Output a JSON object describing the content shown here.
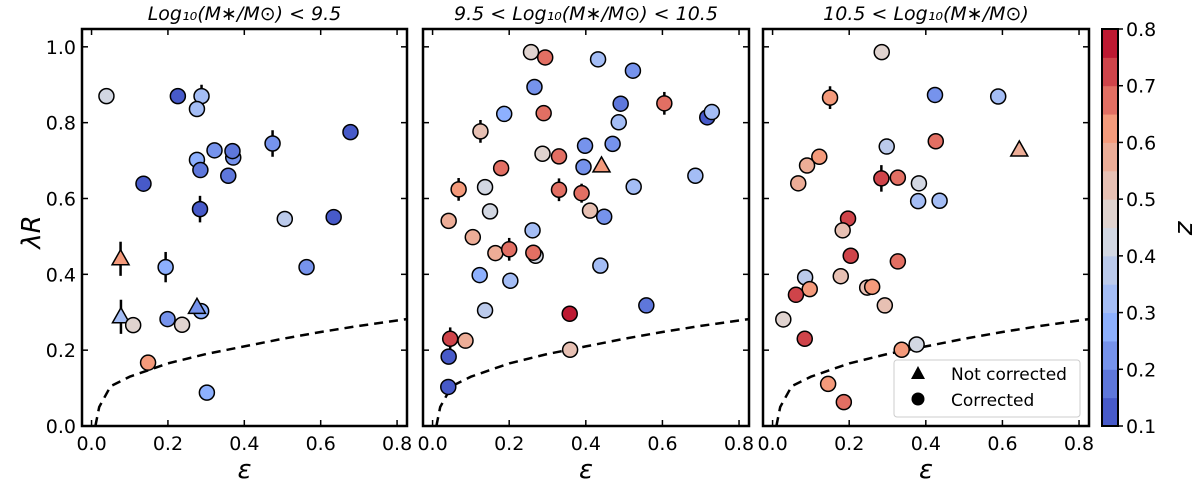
{
  "chart_data": {
    "type": "scatter",
    "ylabel": "λR",
    "xlabel": "ε",
    "xlim": [
      -0.025,
      0.826
    ],
    "ylim": [
      0,
      1.047
    ],
    "xticks": [
      "0.0",
      "0.2",
      "0.4",
      "0.6",
      "0.8"
    ],
    "yticks": [
      "0.0",
      "0.2",
      "0.4",
      "0.6",
      "0.8",
      "1.0"
    ],
    "colorbar": {
      "label": "z",
      "range": [
        0.1,
        0.8
      ],
      "bins": 14,
      "colormap": "coolwarm",
      "ticks": [
        "0.1",
        "0.2",
        "0.3",
        "0.4",
        "0.5",
        "0.6",
        "0.7",
        "0.8"
      ]
    },
    "legend": {
      "placement": "lower-right",
      "entries": [
        {
          "label": "Not corrected",
          "marker": "triangle"
        },
        {
          "label": "Corrected",
          "marker": "circle"
        }
      ]
    },
    "reference_curve": {
      "style": "dashed",
      "color": "#000000",
      "points": [
        [
          0.01,
          0
        ],
        [
          0.02,
          0.05
        ],
        [
          0.05,
          0.105
        ],
        [
          0.1,
          0.13
        ],
        [
          0.2,
          0.165
        ],
        [
          0.3,
          0.19
        ],
        [
          0.4,
          0.21
        ],
        [
          0.5,
          0.23
        ],
        [
          0.6,
          0.248
        ],
        [
          0.7,
          0.264
        ],
        [
          0.826,
          0.282
        ]
      ]
    },
    "panels": [
      {
        "title": "Log₁₀(M∗/M⊙) < 9.5",
        "points": [
          {
            "x": 0.039,
            "y": 0.87,
            "z": 0.42,
            "m": "c"
          },
          {
            "x": 0.226,
            "y": 0.87,
            "z": 0.15,
            "m": "c"
          },
          {
            "x": 0.288,
            "y": 0.87,
            "z": 0.32,
            "m": "c",
            "err": 0.03
          },
          {
            "x": 0.276,
            "y": 0.836,
            "z": 0.32,
            "m": "c"
          },
          {
            "x": 0.678,
            "y": 0.775,
            "z": 0.15,
            "m": "c"
          },
          {
            "x": 0.474,
            "y": 0.745,
            "z": 0.25,
            "m": "c",
            "err": 0.035
          },
          {
            "x": 0.322,
            "y": 0.727,
            "z": 0.25,
            "m": "c"
          },
          {
            "x": 0.371,
            "y": 0.708,
            "z": 0.22,
            "m": "c"
          },
          {
            "x": 0.369,
            "y": 0.725,
            "z": 0.18,
            "m": "c"
          },
          {
            "x": 0.276,
            "y": 0.702,
            "z": 0.3,
            "m": "c"
          },
          {
            "x": 0.285,
            "y": 0.675,
            "z": 0.17,
            "m": "c"
          },
          {
            "x": 0.358,
            "y": 0.66,
            "z": 0.17,
            "m": "c"
          },
          {
            "x": 0.136,
            "y": 0.639,
            "z": 0.15,
            "m": "c"
          },
          {
            "x": 0.284,
            "y": 0.572,
            "z": 0.15,
            "m": "c",
            "err": 0.035
          },
          {
            "x": 0.506,
            "y": 0.546,
            "z": 0.38,
            "m": "c",
            "err": 0.015
          },
          {
            "x": 0.634,
            "y": 0.551,
            "z": 0.15,
            "m": "c"
          },
          {
            "x": 0.563,
            "y": 0.419,
            "z": 0.25,
            "m": "c"
          },
          {
            "x": 0.194,
            "y": 0.419,
            "z": 0.3,
            "m": "c",
            "err": 0.04
          },
          {
            "x": 0.076,
            "y": 0.441,
            "z": 0.62,
            "m": "t",
            "err": 0.045
          },
          {
            "x": 0.077,
            "y": 0.288,
            "z": 0.32,
            "m": "t",
            "err": 0.045
          },
          {
            "x": 0.109,
            "y": 0.266,
            "z": 0.48,
            "m": "c",
            "err": 0.015
          },
          {
            "x": 0.199,
            "y": 0.282,
            "z": 0.25,
            "m": "c"
          },
          {
            "x": 0.237,
            "y": 0.267,
            "z": 0.48,
            "m": "c",
            "err": 0.02
          },
          {
            "x": 0.287,
            "y": 0.303,
            "z": 0.3,
            "m": "c"
          },
          {
            "x": 0.276,
            "y": 0.313,
            "z": 0.25,
            "m": "t"
          },
          {
            "x": 0.148,
            "y": 0.167,
            "z": 0.62,
            "m": "c"
          },
          {
            "x": 0.302,
            "y": 0.088,
            "z": 0.3,
            "m": "c",
            "err": 0.02
          }
        ]
      },
      {
        "title": "9.5 < Log₁₀(M∗/M⊙) < 10.5",
        "points": [
          {
            "x": 0.257,
            "y": 0.986,
            "z": 0.48,
            "m": "c"
          },
          {
            "x": 0.294,
            "y": 0.972,
            "z": 0.68,
            "m": "c"
          },
          {
            "x": 0.432,
            "y": 0.967,
            "z": 0.32,
            "m": "c"
          },
          {
            "x": 0.523,
            "y": 0.937,
            "z": 0.25,
            "m": "c"
          },
          {
            "x": 0.266,
            "y": 0.894,
            "z": 0.24,
            "m": "c"
          },
          {
            "x": 0.491,
            "y": 0.85,
            "z": 0.18,
            "m": "c"
          },
          {
            "x": 0.605,
            "y": 0.851,
            "z": 0.66,
            "m": "c",
            "err": 0.03
          },
          {
            "x": 0.717,
            "y": 0.814,
            "z": 0.15,
            "m": "c"
          },
          {
            "x": 0.729,
            "y": 0.828,
            "z": 0.32,
            "m": "c"
          },
          {
            "x": 0.187,
            "y": 0.823,
            "z": 0.27,
            "m": "c"
          },
          {
            "x": 0.29,
            "y": 0.825,
            "z": 0.66,
            "m": "c"
          },
          {
            "x": 0.486,
            "y": 0.801,
            "z": 0.32,
            "m": "c"
          },
          {
            "x": 0.125,
            "y": 0.777,
            "z": 0.53,
            "m": "c",
            "err": 0.03
          },
          {
            "x": 0.398,
            "y": 0.739,
            "z": 0.25,
            "m": "c"
          },
          {
            "x": 0.47,
            "y": 0.744,
            "z": 0.25,
            "m": "c"
          },
          {
            "x": 0.287,
            "y": 0.718,
            "z": 0.48,
            "m": "c"
          },
          {
            "x": 0.33,
            "y": 0.711,
            "z": 0.66,
            "m": "c"
          },
          {
            "x": 0.394,
            "y": 0.683,
            "z": 0.25,
            "m": "c"
          },
          {
            "x": 0.441,
            "y": 0.686,
            "z": 0.62,
            "m": "t"
          },
          {
            "x": 0.179,
            "y": 0.68,
            "z": 0.66,
            "m": "c",
            "err": 0.02
          },
          {
            "x": 0.686,
            "y": 0.66,
            "z": 0.35,
            "m": "c"
          },
          {
            "x": 0.068,
            "y": 0.624,
            "z": 0.62,
            "m": "c",
            "err": 0.03
          },
          {
            "x": 0.137,
            "y": 0.63,
            "z": 0.43,
            "m": "c"
          },
          {
            "x": 0.33,
            "y": 0.623,
            "z": 0.66,
            "m": "c",
            "err": 0.03
          },
          {
            "x": 0.389,
            "y": 0.614,
            "z": 0.66,
            "m": "c",
            "err": 0.025
          },
          {
            "x": 0.525,
            "y": 0.631,
            "z": 0.33,
            "m": "c"
          },
          {
            "x": 0.15,
            "y": 0.566,
            "z": 0.42,
            "m": "c"
          },
          {
            "x": 0.411,
            "y": 0.568,
            "z": 0.53,
            "m": "c"
          },
          {
            "x": 0.448,
            "y": 0.552,
            "z": 0.25,
            "m": "c"
          },
          {
            "x": 0.042,
            "y": 0.541,
            "z": 0.6,
            "m": "c"
          },
          {
            "x": 0.261,
            "y": 0.516,
            "z": 0.35,
            "m": "c"
          },
          {
            "x": 0.105,
            "y": 0.498,
            "z": 0.55,
            "m": "c"
          },
          {
            "x": 0.164,
            "y": 0.456,
            "z": 0.55,
            "m": "c"
          },
          {
            "x": 0.2,
            "y": 0.466,
            "z": 0.66,
            "m": "c",
            "err": 0.03
          },
          {
            "x": 0.269,
            "y": 0.449,
            "z": 0.4,
            "m": "c"
          },
          {
            "x": 0.263,
            "y": 0.457,
            "z": 0.66,
            "m": "c"
          },
          {
            "x": 0.438,
            "y": 0.423,
            "z": 0.33,
            "m": "c"
          },
          {
            "x": 0.123,
            "y": 0.398,
            "z": 0.27,
            "m": "c"
          },
          {
            "x": 0.203,
            "y": 0.383,
            "z": 0.32,
            "m": "c"
          },
          {
            "x": 0.137,
            "y": 0.305,
            "z": 0.37,
            "m": "c"
          },
          {
            "x": 0.558,
            "y": 0.318,
            "z": 0.18,
            "m": "c"
          },
          {
            "x": 0.358,
            "y": 0.296,
            "z": 0.79,
            "m": "c",
            "err": 0.02
          },
          {
            "x": 0.046,
            "y": 0.23,
            "z": 0.72,
            "m": "c",
            "err": 0.03
          },
          {
            "x": 0.086,
            "y": 0.225,
            "z": 0.6,
            "m": "c"
          },
          {
            "x": 0.359,
            "y": 0.201,
            "z": 0.53,
            "m": "c"
          },
          {
            "x": 0.042,
            "y": 0.183,
            "z": 0.15,
            "m": "c",
            "err": 0.02
          },
          {
            "x": 0.041,
            "y": 0.103,
            "z": 0.15,
            "m": "c"
          }
        ]
      },
      {
        "title": "10.5 < Log₁₀(M∗/M⊙)",
        "points": [
          {
            "x": 0.285,
            "y": 0.986,
            "z": 0.48,
            "m": "c"
          },
          {
            "x": 0.15,
            "y": 0.866,
            "z": 0.62,
            "m": "c",
            "err": 0.03
          },
          {
            "x": 0.424,
            "y": 0.873,
            "z": 0.25,
            "m": "c"
          },
          {
            "x": 0.589,
            "y": 0.869,
            "z": 0.33,
            "m": "c"
          },
          {
            "x": 0.426,
            "y": 0.751,
            "z": 0.66,
            "m": "c"
          },
          {
            "x": 0.644,
            "y": 0.728,
            "z": 0.55,
            "m": "t"
          },
          {
            "x": 0.298,
            "y": 0.737,
            "z": 0.37,
            "m": "c"
          },
          {
            "x": 0.122,
            "y": 0.71,
            "z": 0.63,
            "m": "c"
          },
          {
            "x": 0.09,
            "y": 0.687,
            "z": 0.6,
            "m": "c"
          },
          {
            "x": 0.067,
            "y": 0.64,
            "z": 0.58,
            "m": "c"
          },
          {
            "x": 0.284,
            "y": 0.653,
            "z": 0.71,
            "m": "c",
            "err": 0.035
          },
          {
            "x": 0.327,
            "y": 0.655,
            "z": 0.66,
            "m": "c"
          },
          {
            "x": 0.382,
            "y": 0.64,
            "z": 0.43,
            "m": "c"
          },
          {
            "x": 0.38,
            "y": 0.593,
            "z": 0.33,
            "m": "c"
          },
          {
            "x": 0.436,
            "y": 0.594,
            "z": 0.33,
            "m": "c"
          },
          {
            "x": 0.197,
            "y": 0.547,
            "z": 0.72,
            "m": "c"
          },
          {
            "x": 0.183,
            "y": 0.516,
            "z": 0.53,
            "m": "c"
          },
          {
            "x": 0.204,
            "y": 0.449,
            "z": 0.72,
            "m": "c"
          },
          {
            "x": 0.327,
            "y": 0.434,
            "z": 0.66,
            "m": "c"
          },
          {
            "x": 0.085,
            "y": 0.392,
            "z": 0.37,
            "m": "c"
          },
          {
            "x": 0.178,
            "y": 0.395,
            "z": 0.53,
            "m": "c"
          },
          {
            "x": 0.097,
            "y": 0.361,
            "z": 0.63,
            "m": "c"
          },
          {
            "x": 0.061,
            "y": 0.346,
            "z": 0.72,
            "m": "c"
          },
          {
            "x": 0.247,
            "y": 0.365,
            "z": 0.53,
            "m": "c"
          },
          {
            "x": 0.26,
            "y": 0.367,
            "z": 0.63,
            "m": "c"
          },
          {
            "x": 0.293,
            "y": 0.318,
            "z": 0.53,
            "m": "c"
          },
          {
            "x": 0.028,
            "y": 0.281,
            "z": 0.47,
            "m": "c"
          },
          {
            "x": 0.084,
            "y": 0.23,
            "z": 0.72,
            "m": "c"
          },
          {
            "x": 0.376,
            "y": 0.215,
            "z": 0.42,
            "m": "c"
          },
          {
            "x": 0.337,
            "y": 0.201,
            "z": 0.62,
            "m": "c"
          },
          {
            "x": 0.145,
            "y": 0.111,
            "z": 0.62,
            "m": "c"
          },
          {
            "x": 0.186,
            "y": 0.063,
            "z": 0.66,
            "m": "c"
          }
        ]
      }
    ]
  }
}
